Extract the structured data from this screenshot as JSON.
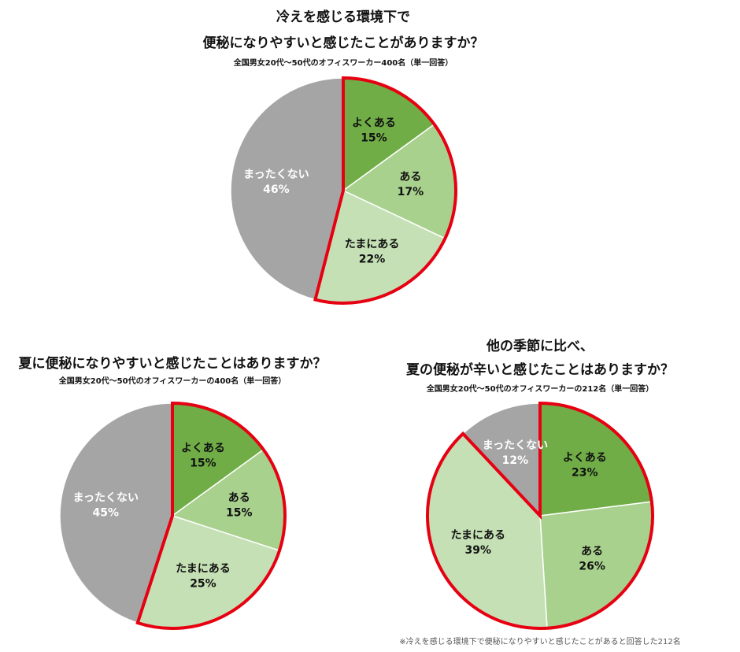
{
  "chart_data": [
    {
      "type": "pie",
      "title": [
        "冷えを感じる環境下で",
        "便秘になりやすいと感じたことがありますか？"
      ],
      "subtitle": "全国男女20代～50代のオフィスワーカー400名（単一回答）",
      "categories": [
        "よくある",
        "ある",
        "たまにある",
        "まったくない"
      ],
      "values": [
        15,
        17,
        22,
        46
      ],
      "value_labels": [
        "15%",
        "17%",
        "22%",
        "46%"
      ],
      "colors": [
        "#70ad47",
        "#a9d18e",
        "#c5e0b4",
        "#a5a5a5"
      ],
      "label_colors": [
        "#111111",
        "#111111",
        "#111111",
        "#ffffff"
      ],
      "highlight": [
        0,
        1,
        2
      ],
      "highlight_color": "#e60012"
    },
    {
      "type": "pie",
      "title": [
        "夏に便秘になりやすいと感じたことはありますか？"
      ],
      "subtitle": "全国男女20代～50代のオフィスワーカーの400名（単一回答）",
      "categories": [
        "よくある",
        "ある",
        "たまにある",
        "まったくない"
      ],
      "values": [
        15,
        15,
        25,
        45
      ],
      "value_labels": [
        "15%",
        "15%",
        "25%",
        "45%"
      ],
      "colors": [
        "#70ad47",
        "#a9d18e",
        "#c5e0b4",
        "#a5a5a5"
      ],
      "label_colors": [
        "#111111",
        "#111111",
        "#111111",
        "#ffffff"
      ],
      "highlight": [
        0,
        1,
        2
      ],
      "highlight_color": "#e60012"
    },
    {
      "type": "pie",
      "title": [
        "他の季節に比べ、",
        "夏の便秘が辛いと感じたことはありますか？"
      ],
      "subtitle": "全国男女20代～50代のオフィスワーカーの212名（単一回答）",
      "categories": [
        "よくある",
        "ある",
        "たまにある",
        "まったくない"
      ],
      "values": [
        23,
        26,
        39,
        12
      ],
      "value_labels": [
        "23%",
        "26%",
        "39%",
        "12%"
      ],
      "colors": [
        "#70ad47",
        "#a9d18e",
        "#c5e0b4",
        "#a5a5a5"
      ],
      "label_colors": [
        "#111111",
        "#111111",
        "#111111",
        "#ffffff"
      ],
      "highlight": [
        0,
        1,
        2
      ],
      "highlight_color": "#e60012",
      "footnote": "※冷えを感じる環境下で便秘になりやすいと感じたことがあると回答した212名"
    }
  ]
}
